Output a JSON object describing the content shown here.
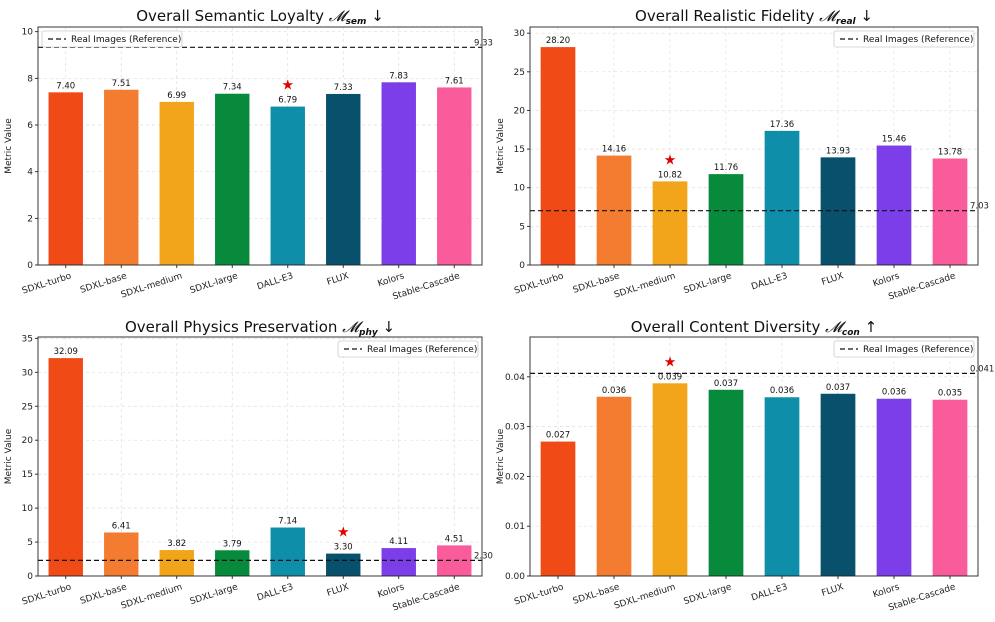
{
  "colors": {
    "SDXL-turbo": "#f04a17",
    "SDXL-base": "#f47c30",
    "SDXL-medium": "#f2a51a",
    "SDXL-large": "#078a3c",
    "DALL-E3": "#0e8ea8",
    "FLUX": "#08506b",
    "Kolors": "#7b3ee8",
    "Stable-Cascade": "#fa5c9b"
  },
  "chart_data": [
    {
      "type": "bar",
      "title": "Overall Semantic Loyalty",
      "metric_symbol": "𝓜",
      "metric_sub": "sem",
      "direction": "↓",
      "ylabel": "Metric Value",
      "categories": [
        "SDXL-turbo",
        "SDXL-base",
        "SDXL-medium",
        "SDXL-large",
        "DALL-E3",
        "FLUX",
        "Kolors",
        "Stable-Cascade"
      ],
      "values": [
        7.4,
        7.51,
        6.99,
        7.34,
        6.79,
        7.33,
        7.83,
        7.61
      ],
      "value_labels": [
        "7.40",
        "7.51",
        "6.99",
        "7.34",
        "6.79",
        "7.33",
        "7.83",
        "7.61"
      ],
      "ylim": [
        0,
        10.2
      ],
      "yticks": [
        0,
        2,
        4,
        6,
        8,
        10
      ],
      "ytick_labels": [
        "0",
        "2",
        "4",
        "6",
        "8",
        "10"
      ],
      "reference": 9.33,
      "reference_label": "9.33",
      "legend": "Real Images (Reference)",
      "legend_position": "top-left",
      "star_index": 4
    },
    {
      "type": "bar",
      "title": "Overall Realistic Fidelity",
      "metric_symbol": "𝓜",
      "metric_sub": "real",
      "direction": "↓",
      "ylabel": "Metric Value",
      "categories": [
        "SDXL-turbo",
        "SDXL-base",
        "SDXL-medium",
        "SDXL-large",
        "DALL-E3",
        "FLUX",
        "Kolors",
        "Stable-Cascade"
      ],
      "values": [
        28.2,
        14.16,
        10.82,
        11.76,
        17.36,
        13.93,
        15.46,
        13.78
      ],
      "value_labels": [
        "28.20",
        "14.16",
        "10.82",
        "11.76",
        "17.36",
        "13.93",
        "15.46",
        "13.78"
      ],
      "ylim": [
        0,
        30.8
      ],
      "yticks": [
        0,
        5,
        10,
        15,
        20,
        25,
        30
      ],
      "ytick_labels": [
        "0",
        "5",
        "10",
        "15",
        "20",
        "25",
        "30"
      ],
      "reference": 7.03,
      "reference_label": "7.03",
      "legend": "Real Images (Reference)",
      "legend_position": "top-right",
      "star_index": 2
    },
    {
      "type": "bar",
      "title": "Overall Physics Preservation",
      "metric_symbol": "𝓜",
      "metric_sub": "phy",
      "direction": "↓",
      "ylabel": "Metric Value",
      "categories": [
        "SDXL-turbo",
        "SDXL-base",
        "SDXL-medium",
        "SDXL-large",
        "DALL-E3",
        "FLUX",
        "Kolors",
        "Stable-Cascade"
      ],
      "values": [
        32.09,
        6.41,
        3.82,
        3.79,
        7.14,
        3.3,
        4.11,
        4.51
      ],
      "value_labels": [
        "32.09",
        "6.41",
        "3.82",
        "3.79",
        "7.14",
        "3.30",
        "4.11",
        "4.51"
      ],
      "ylim": [
        0,
        35.2
      ],
      "yticks": [
        0,
        5,
        10,
        15,
        20,
        25,
        30,
        35
      ],
      "ytick_labels": [
        "0",
        "5",
        "10",
        "15",
        "20",
        "25",
        "30",
        "35"
      ],
      "reference": 2.3,
      "reference_label": "2.30",
      "legend": "Real Images (Reference)",
      "legend_position": "top-right",
      "star_index": 5
    },
    {
      "type": "bar",
      "title": "Overall Content Diversity",
      "metric_symbol": "𝓜",
      "metric_sub": "con",
      "direction": "↑",
      "ylabel": "Metric Value",
      "categories": [
        "SDXL-turbo",
        "SDXL-base",
        "SDXL-medium",
        "SDXL-large",
        "DALL-E3",
        "FLUX",
        "Kolors",
        "Stable-Cascade"
      ],
      "values": [
        0.027,
        0.036,
        0.0387,
        0.0374,
        0.0359,
        0.0366,
        0.0356,
        0.0354
      ],
      "value_labels": [
        "0.027",
        "0.036",
        "0.039",
        "0.037",
        "0.036",
        "0.037",
        "0.036",
        "0.035"
      ],
      "ylim": [
        0,
        0.048
      ],
      "yticks": [
        0.0,
        0.01,
        0.02,
        0.03,
        0.04
      ],
      "ytick_labels": [
        "0.00",
        "0.01",
        "0.02",
        "0.03",
        "0.04"
      ],
      "reference": 0.0407,
      "reference_label": "0.041",
      "legend": "Real Images (Reference)",
      "legend_position": "top-right",
      "star_index": 2
    }
  ]
}
